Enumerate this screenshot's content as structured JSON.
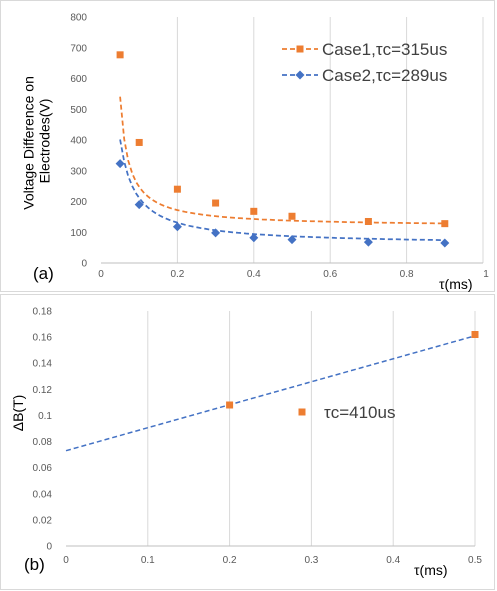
{
  "chart_data": [
    {
      "type": "line",
      "panel_label": "(a)",
      "xlabel": "τ(ms)",
      "ylabel_lines": [
        "Voltage Difference on",
        "Electrodes(V)"
      ],
      "xlim": [
        0,
        1
      ],
      "ylim": [
        0,
        800
      ],
      "x_ticks": [
        0,
        0.2,
        0.4,
        0.6,
        0.8,
        1
      ],
      "x_tick_labels": [
        "0",
        "0.2",
        "0.4",
        "0.6",
        "0.8",
        "1"
      ],
      "y_ticks": [
        0,
        100,
        200,
        300,
        400,
        500,
        600,
        700,
        800
      ],
      "y_tick_labels": [
        "0",
        "100",
        "200",
        "300",
        "400",
        "500",
        "600",
        "700",
        "800"
      ],
      "grid": "vertical",
      "legend_position": "top-right",
      "series": [
        {
          "name": "Case1,τc=315us",
          "color": "#ed7d31",
          "marker": "square",
          "x": [
            0.05,
            0.1,
            0.2,
            0.3,
            0.4,
            0.5,
            0.7,
            0.9
          ],
          "y": [
            677,
            392,
            240,
            195,
            168,
            152,
            135,
            128
          ],
          "fit": {
            "x0": 0.05,
            "x1": 0.9,
            "a": 9.3,
            "b": 118,
            "c": 0.028
          }
        },
        {
          "name": "Case2,τc=289us",
          "color": "#4472c4",
          "marker": "diamond",
          "x": [
            0.05,
            0.1,
            0.2,
            0.3,
            0.4,
            0.5,
            0.7,
            0.9
          ],
          "y": [
            323,
            190,
            118,
            98,
            82,
            76,
            68,
            65
          ],
          "fit": {
            "x0": 0.05,
            "x1": 0.9,
            "a": 13.7,
            "b": 59,
            "c": 0.01
          }
        }
      ]
    },
    {
      "type": "scatter",
      "panel_label": "(b)",
      "xlabel": "τ(ms)",
      "ylabel": "ΔB(T)",
      "xlim": [
        0,
        0.5
      ],
      "ylim": [
        0,
        0.18
      ],
      "x_ticks": [
        0,
        0.1,
        0.2,
        0.3,
        0.4,
        0.5
      ],
      "x_tick_labels": [
        "0",
        "0.1",
        "0.2",
        "0.3",
        "0.4",
        "0.5"
      ],
      "y_ticks": [
        0,
        0.02,
        0.04,
        0.06,
        0.08,
        0.1,
        0.12,
        0.14,
        0.16,
        0.18
      ],
      "y_tick_labels": [
        "0",
        "0.02",
        "0.04",
        "0.06",
        "0.08",
        "0.1",
        "0.12",
        "0.14",
        "0.16",
        "0.18"
      ],
      "grid": "vertical",
      "legend_position": "center-right",
      "series": [
        {
          "name": "τc=410us",
          "color": "#ed7d31",
          "marker": "square",
          "x": [
            0.2,
            0.5
          ],
          "y": [
            0.108,
            0.162
          ],
          "trendline": {
            "color": "#4472c4",
            "x": [
              0,
              0.5
            ],
            "y": [
              0.073,
              0.161
            ]
          }
        }
      ]
    }
  ]
}
